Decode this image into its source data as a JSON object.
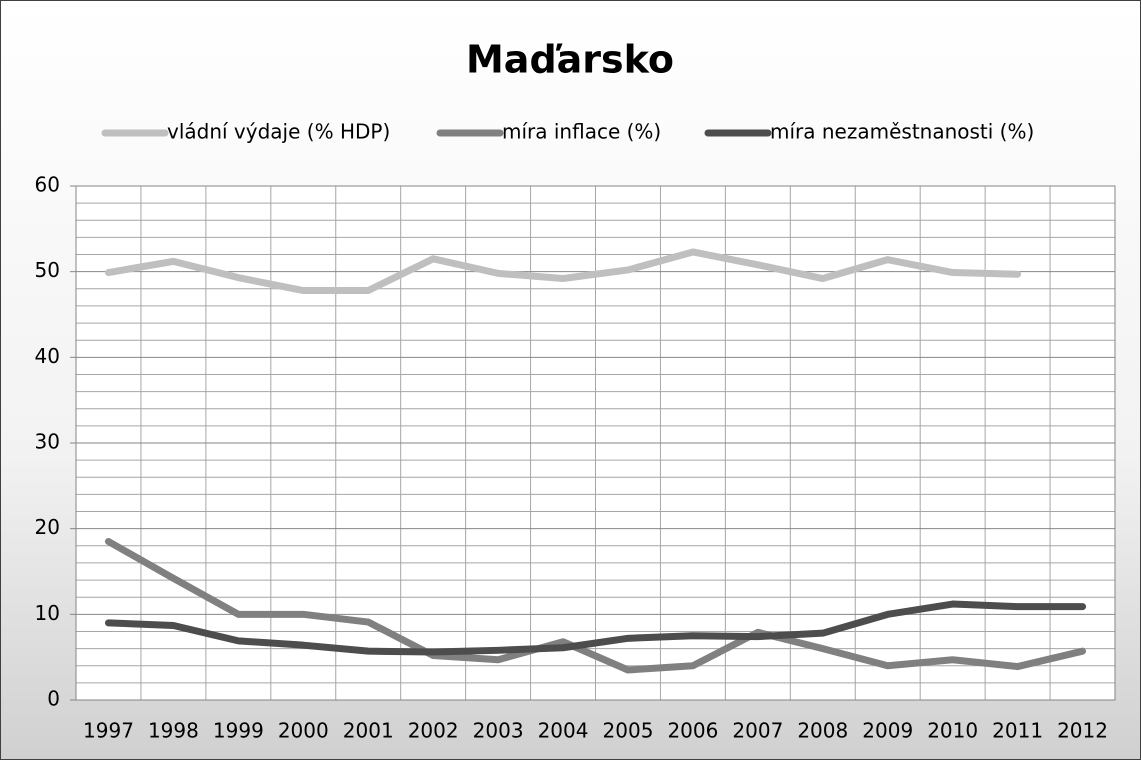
{
  "chart_data": {
    "type": "line",
    "title": "Maďarsko",
    "categories": [
      "1997",
      "1998",
      "1999",
      "2000",
      "2001",
      "2002",
      "2003",
      "2004",
      "2005",
      "2006",
      "2007",
      "2008",
      "2009",
      "2010",
      "2011",
      "2012"
    ],
    "series": [
      {
        "name": "vládní výdaje (% HDP)",
        "color": "#bfbfbf",
        "values": [
          49.9,
          51.2,
          49.3,
          47.8,
          47.8,
          51.5,
          49.8,
          49.2,
          50.2,
          52.3,
          50.8,
          49.2,
          51.4,
          49.9,
          49.7,
          null
        ]
      },
      {
        "name": "míra inflace (%)",
        "color": "#808080",
        "values": [
          18.5,
          14.2,
          10.0,
          10.0,
          9.1,
          5.2,
          4.7,
          6.8,
          3.5,
          4.0,
          7.9,
          6.0,
          4.0,
          4.7,
          3.9,
          5.7
        ]
      },
      {
        "name": "míra nezaměstnanosti (%)",
        "color": "#4d4d4d",
        "values": [
          9.0,
          8.7,
          6.9,
          6.4,
          5.7,
          5.6,
          5.8,
          6.1,
          7.2,
          7.5,
          7.4,
          7.8,
          10.0,
          11.2,
          10.9,
          10.9
        ]
      }
    ],
    "ylim": [
      0,
      60
    ],
    "yticks": [
      0,
      10,
      20,
      30,
      40,
      50,
      60
    ],
    "y_minor_ticks": [
      2,
      4,
      6,
      8,
      12,
      14,
      16,
      18,
      22,
      24,
      26,
      28,
      32,
      34,
      36,
      38,
      42,
      44,
      46,
      48,
      52,
      54,
      56,
      58
    ],
    "grid": true,
    "legend": "top"
  }
}
